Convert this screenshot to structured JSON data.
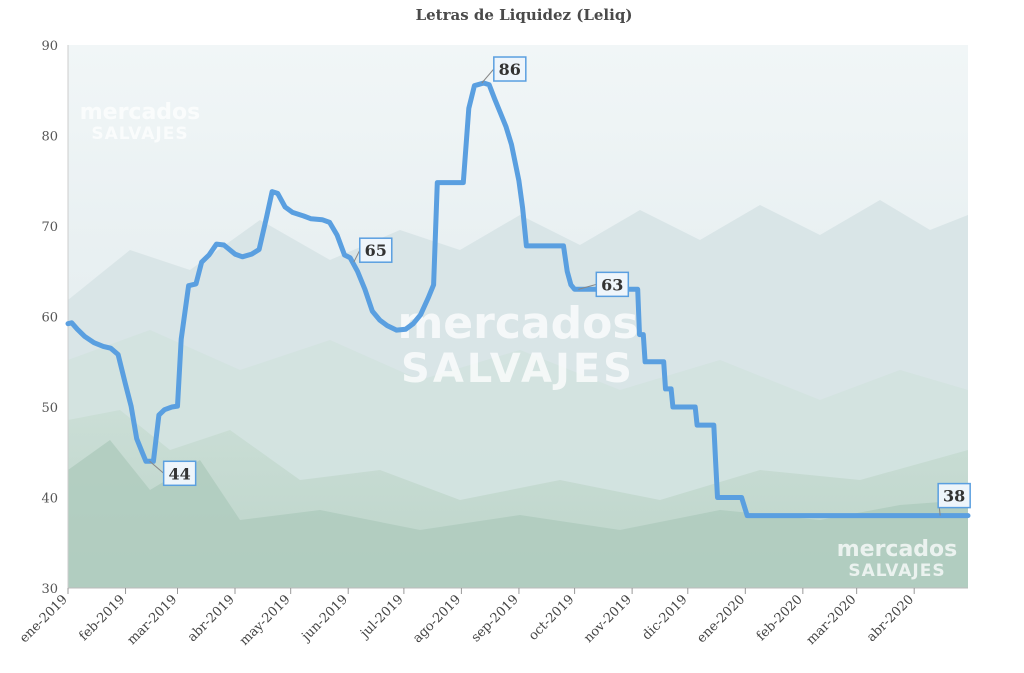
{
  "chart_data": {
    "type": "line",
    "title": "Letras de Liquidez (Leliq)",
    "xlabel": "",
    "ylabel": "",
    "ylim": [
      30,
      90
    ],
    "yticks": [
      30,
      40,
      50,
      60,
      70,
      80,
      90
    ],
    "xlim": [
      "2019-01-01",
      "2020-04-30"
    ],
    "xticks": [
      {
        "label": "ene-2019",
        "date": "2019-01-01"
      },
      {
        "label": "feb-2019",
        "date": "2019-02-01"
      },
      {
        "label": "mar-2019",
        "date": "2019-03-01"
      },
      {
        "label": "abr-2019",
        "date": "2019-04-01"
      },
      {
        "label": "may-2019",
        "date": "2019-05-01"
      },
      {
        "label": "jun-2019",
        "date": "2019-06-01"
      },
      {
        "label": "jul-2019",
        "date": "2019-07-01"
      },
      {
        "label": "ago-2019",
        "date": "2019-08-01"
      },
      {
        "label": "sep-2019",
        "date": "2019-09-01"
      },
      {
        "label": "oct-2019",
        "date": "2019-10-01"
      },
      {
        "label": "nov-2019",
        "date": "2019-11-01"
      },
      {
        "label": "dic-2019",
        "date": "2019-12-01"
      },
      {
        "label": "ene-2020",
        "date": "2020-01-01"
      },
      {
        "label": "feb-2020",
        "date": "2020-02-01"
      },
      {
        "label": "mar-2020",
        "date": "2020-03-01"
      },
      {
        "label": "abr-2020",
        "date": "2020-04-01"
      }
    ],
    "grid": false,
    "legend": "none",
    "series": [
      {
        "color": "#5a9fe0",
        "points": [
          [
            "2019-01-01",
            59.2
          ],
          [
            "2019-01-03",
            59.3
          ],
          [
            "2019-01-06",
            58.6
          ],
          [
            "2019-01-10",
            57.8
          ],
          [
            "2019-01-15",
            57.1
          ],
          [
            "2019-01-20",
            56.7
          ],
          [
            "2019-01-24",
            56.5
          ],
          [
            "2019-01-28",
            55.8
          ],
          [
            "2019-02-01",
            52.5
          ],
          [
            "2019-02-04",
            50.1
          ],
          [
            "2019-02-07",
            46.5
          ],
          [
            "2019-02-10",
            45.0
          ],
          [
            "2019-02-12",
            44.0
          ],
          [
            "2019-02-16",
            44.0
          ],
          [
            "2019-02-19",
            49.1
          ],
          [
            "2019-02-22",
            49.7
          ],
          [
            "2019-02-26",
            50.0
          ],
          [
            "2019-03-01",
            50.1
          ],
          [
            "2019-03-03",
            57.5
          ],
          [
            "2019-03-07",
            63.4
          ],
          [
            "2019-03-11",
            63.6
          ],
          [
            "2019-03-14",
            66.0
          ],
          [
            "2019-03-18",
            66.8
          ],
          [
            "2019-03-22",
            68.0
          ],
          [
            "2019-03-26",
            67.9
          ],
          [
            "2019-04-01",
            66.9
          ],
          [
            "2019-04-05",
            66.6
          ],
          [
            "2019-04-10",
            66.9
          ],
          [
            "2019-04-14",
            67.4
          ],
          [
            "2019-04-18",
            71.0
          ],
          [
            "2019-04-21",
            73.8
          ],
          [
            "2019-04-24",
            73.6
          ],
          [
            "2019-04-28",
            72.1
          ],
          [
            "2019-05-02",
            71.5
          ],
          [
            "2019-05-08",
            71.1
          ],
          [
            "2019-05-12",
            70.8
          ],
          [
            "2019-05-18",
            70.7
          ],
          [
            "2019-05-22",
            70.4
          ],
          [
            "2019-05-26",
            69.0
          ],
          [
            "2019-05-30",
            66.8
          ],
          [
            "2019-06-02",
            66.5
          ],
          [
            "2019-06-06",
            65.0
          ],
          [
            "2019-06-10",
            63.0
          ],
          [
            "2019-06-14",
            60.6
          ],
          [
            "2019-06-18",
            59.6
          ],
          [
            "2019-06-22",
            59.0
          ],
          [
            "2019-06-27",
            58.5
          ],
          [
            "2019-07-02",
            58.6
          ],
          [
            "2019-07-06",
            59.2
          ],
          [
            "2019-07-10",
            60.2
          ],
          [
            "2019-07-14",
            62.0
          ],
          [
            "2019-07-17",
            63.5
          ],
          [
            "2019-07-19",
            74.8
          ],
          [
            "2019-07-24",
            74.8
          ],
          [
            "2019-07-30",
            74.8
          ],
          [
            "2019-08-02",
            74.8
          ],
          [
            "2019-08-05",
            83.0
          ],
          [
            "2019-08-08",
            85.5
          ],
          [
            "2019-08-13",
            85.8
          ],
          [
            "2019-08-16",
            85.6
          ],
          [
            "2019-08-19",
            84.0
          ],
          [
            "2019-08-22",
            82.5
          ],
          [
            "2019-08-25",
            81.0
          ],
          [
            "2019-08-28",
            79.0
          ],
          [
            "2019-09-01",
            75.0
          ],
          [
            "2019-09-03",
            72.0
          ],
          [
            "2019-09-05",
            67.8
          ],
          [
            "2019-09-12",
            67.8
          ],
          [
            "2019-09-20",
            67.8
          ],
          [
            "2019-09-25",
            67.8
          ],
          [
            "2019-09-27",
            65.0
          ],
          [
            "2019-09-29",
            63.5
          ],
          [
            "2019-10-01",
            63.0
          ],
          [
            "2019-10-10",
            63.0
          ],
          [
            "2019-10-20",
            63.0
          ],
          [
            "2019-10-30",
            63.0
          ],
          [
            "2019-11-04",
            63.0
          ],
          [
            "2019-11-05",
            58.0
          ],
          [
            "2019-11-07",
            58.0
          ],
          [
            "2019-11-08",
            55.0
          ],
          [
            "2019-11-18",
            55.0
          ],
          [
            "2019-11-19",
            52.0
          ],
          [
            "2019-11-22",
            52.0
          ],
          [
            "2019-11-23",
            50.0
          ],
          [
            "2019-12-05",
            50.0
          ],
          [
            "2019-12-06",
            48.0
          ],
          [
            "2019-12-15",
            48.0
          ],
          [
            "2019-12-16",
            44.0
          ],
          [
            "2019-12-17",
            40.0
          ],
          [
            "2019-12-30",
            40.0
          ],
          [
            "2020-01-02",
            38.0
          ],
          [
            "2020-01-20",
            38.0
          ],
          [
            "2020-02-10",
            38.0
          ],
          [
            "2020-03-01",
            38.0
          ],
          [
            "2020-04-01",
            38.0
          ],
          [
            "2020-04-30",
            38.0
          ]
        ]
      }
    ],
    "annotations": [
      {
        "text": "44",
        "date": "2019-02-14",
        "value": 44
      },
      {
        "text": "65",
        "date": "2019-06-04",
        "value": 66
      },
      {
        "text": "86",
        "date": "2019-08-12",
        "value": 85.8
      },
      {
        "text": "63",
        "date": "2019-10-03",
        "value": 63
      },
      {
        "text": "38",
        "date": "2020-04-15",
        "value": 38
      }
    ]
  },
  "watermark": {
    "brand_line1": "mercados",
    "brand_line2": "SALVAJES"
  },
  "colors": {
    "line": "#5a9fe0",
    "label_border": "#5a9fe0",
    "label_bg": "#eef5fb"
  }
}
